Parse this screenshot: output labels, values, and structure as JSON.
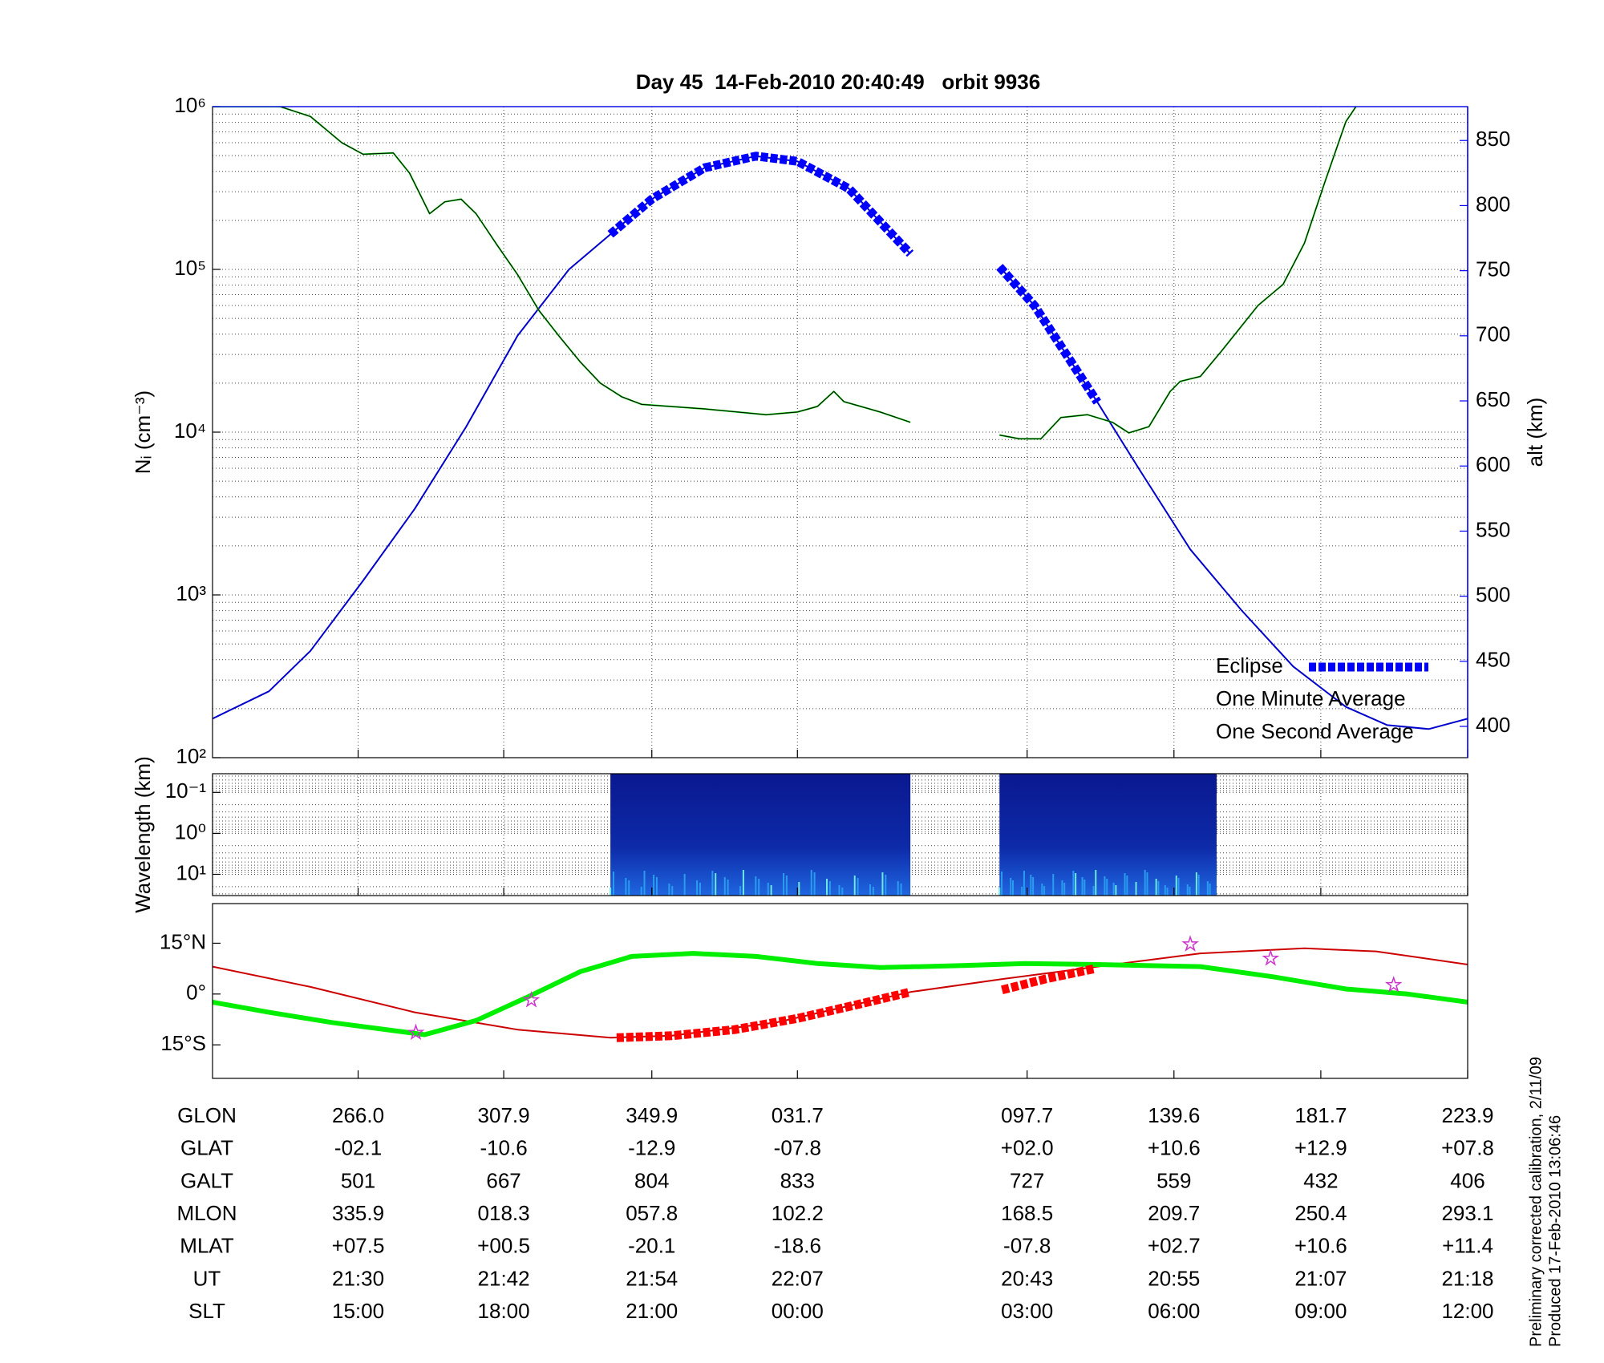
{
  "chart_data": [
    {
      "type": "line",
      "title": "Day 45  14-Feb-2010 20:40:49   orbit 9936",
      "ylabel": "Nᵢ (cm⁻³)",
      "y2label": "alt (km)",
      "y2color": "#0000ff",
      "ylog": true,
      "grid": true,
      "legend": "lower right",
      "xlim": [
        0,
        100
      ],
      "xticks": [
        11.6,
        23.2,
        35.0,
        46.6,
        64.9,
        76.6,
        88.3,
        100
      ],
      "ylim": [
        100,
        1000000
      ],
      "yticks": [
        {
          "value": 100,
          "label": "10²"
        },
        {
          "value": 1000,
          "label": "10³"
        },
        {
          "value": 10000,
          "label": "10⁴"
        },
        {
          "value": 100000,
          "label": "10⁵"
        },
        {
          "value": 1000000,
          "label": "10⁶"
        }
      ],
      "y2lim": [
        376,
        876
      ],
      "y2ticks": [
        400,
        450,
        500,
        550,
        600,
        650,
        700,
        750,
        800,
        850
      ],
      "series": [
        {
          "name": "Eclipse",
          "color": "#0000ff",
          "axis": "y2",
          "linestyle": "dashed",
          "weight": "heavy",
          "x": [
            31.7,
            35.0,
            39.2,
            43.3,
            46.6,
            50.7,
            55.6,
            59,
            62.7,
            65.5,
            70.5
          ],
          "values": [
            778,
            805,
            829,
            838,
            834,
            813,
            763,
            null,
            753,
            723,
            649
          ]
        },
        {
          "name": "One Minute Average",
          "color": "#000000",
          "linestyle": "solid",
          "weight": "light",
          "x": [
            0,
            5.4,
            7.8,
            10.3,
            12.0,
            14.4,
            15.7,
            17.3,
            18.5,
            19.8,
            21.0,
            22.7,
            24.3,
            26.0,
            27.6,
            29.3,
            30.9,
            32.6,
            34.2,
            39.2,
            44.1,
            46.6,
            48.2,
            49.5,
            50.3,
            53.2,
            55.6,
            59,
            62.7,
            64.3,
            66.0,
            67.6,
            69.7,
            71.7,
            73.0,
            74.6,
            76.3,
            77.1,
            78.7,
            80.4,
            83.3,
            85.3,
            87.0,
            88.6,
            90.3,
            91.1
          ],
          "values": [
            1000000,
            1000000,
            870000,
            600000,
            510000,
            520000,
            390000,
            220000,
            260000,
            270000,
            220000,
            140000,
            93000,
            56000,
            39000,
            27000,
            20000,
            16500,
            14800,
            13900,
            12800,
            13300,
            14400,
            17800,
            15400,
            13300,
            11500,
            null,
            9600,
            9100,
            9100,
            12300,
            12800,
            11500,
            9900,
            10800,
            17800,
            20500,
            22000,
            31600,
            60000,
            81000,
            145000,
            340000,
            810000,
            1000000
          ]
        },
        {
          "name": "One Second Average",
          "color": "#00dd00",
          "linestyle": "solid",
          "weight": "light",
          "x": [
            0,
            5.4,
            7.8,
            10.3,
            12.0,
            14.4,
            15.7,
            17.3,
            18.5,
            19.8,
            21.0,
            22.7,
            24.3,
            26.0,
            27.6,
            29.3,
            30.9,
            32.6,
            34.2,
            39.2,
            44.1,
            46.6,
            48.2,
            49.5,
            50.3,
            53.2,
            55.6,
            59,
            62.7,
            64.3,
            66.0,
            67.6,
            69.7,
            71.7,
            73.0,
            74.6,
            76.3,
            77.1,
            78.7,
            80.4,
            83.3,
            85.3,
            87.0,
            88.6,
            90.3,
            91.1
          ],
          "values": [
            1000000,
            1000000,
            870000,
            600000,
            510000,
            520000,
            390000,
            220000,
            260000,
            270000,
            220000,
            140000,
            93000,
            56000,
            39000,
            27000,
            20000,
            16500,
            14800,
            13900,
            12800,
            13300,
            14400,
            17800,
            15400,
            13300,
            11500,
            null,
            9600,
            9100,
            9100,
            12300,
            12800,
            11500,
            9900,
            10800,
            17800,
            20500,
            22000,
            31600,
            60000,
            81000,
            145000,
            340000,
            810000,
            1000000
          ]
        },
        {
          "color": "#0000cc",
          "axis": "y2",
          "linestyle": "solid",
          "weight": "light",
          "x": [
            0,
            4.5,
            7.8,
            12.0,
            16.1,
            20.2,
            24.3,
            28.4,
            31.7,
            35.0,
            39.2,
            43.3,
            46.6,
            50.7,
            55.6,
            59,
            62.7,
            65.5,
            70.5,
            73.8,
            77.9,
            82.0,
            86.1,
            90.3,
            93.6,
            96.9,
            100
          ],
          "values": [
            406,
            427,
            458,
            512,
            567,
            630,
            700,
            751,
            778,
            805,
            829,
            838,
            834,
            813,
            763,
            null,
            753,
            723,
            649,
            598,
            536,
            489,
            446,
            415,
            401,
            398,
            406
          ]
        }
      ]
    },
    {
      "type": "heatmap",
      "ylabel": "Wavelength (km)",
      "ylog": true,
      "grid": true,
      "xlim": [
        0,
        100
      ],
      "xticks": [
        11.6,
        23.2,
        35.0,
        46.6,
        64.9,
        76.6,
        88.3,
        100
      ],
      "ylim": [
        33,
        0.035
      ],
      "yticks": [
        {
          "value": 0.1,
          "label": "10⁻¹"
        },
        {
          "value": 1,
          "label": "10⁰"
        },
        {
          "value": 10,
          "label": "10¹"
        }
      ],
      "spectra": [
        {
          "x": [
            31.7,
            55.6
          ]
        },
        {
          "x": [
            62.7,
            80.0
          ]
        }
      ]
    },
    {
      "type": "line",
      "grid": false,
      "xlim": [
        0,
        100
      ],
      "xticks": [
        11.6,
        23.2,
        35.0,
        46.6,
        64.9,
        76.6,
        88.3,
        100
      ],
      "ylim": [
        -24.9,
        26.7
      ],
      "yticks": [
        {
          "value": 15,
          "label": "15°N"
        },
        {
          "value": 0,
          "label": "0°"
        },
        {
          "value": -15,
          "label": "15°S"
        }
      ],
      "series": [
        {
          "marker": "star",
          "color": "#cc33cc",
          "x": [
            16.2,
            25.4,
            77.9,
            84.3,
            94.1
          ],
          "values": [
            -11.4,
            -1.8,
            14.7,
            10.5,
            2.7
          ]
        },
        {
          "color": "#ff0000",
          "linestyle": "dashed",
          "weight": "heavy",
          "x": [
            32.2,
            36.6,
            41.6,
            46.6,
            51.5,
            55.6,
            59,
            62.9,
            66.4,
            70.3
          ],
          "values": [
            -12.9,
            -12.3,
            -10.5,
            -7.2,
            -3.0,
            0.6,
            null,
            1.2,
            4.5,
            7.5
          ]
        },
        {
          "color": "#00ee00",
          "linestyle": "solid",
          "weight": "heavy",
          "x": [
            0,
            4.5,
            9.5,
            14.4,
            16.9,
            21.0,
            25.1,
            29.3,
            33.4,
            38.3,
            43.3,
            48.2,
            53.2,
            59.8,
            64.7,
            70.5,
            78.7,
            84.5,
            90.3,
            95.2,
            100
          ],
          "values": [
            -2.4,
            -5.4,
            -8.4,
            -10.8,
            -12.0,
            -7.8,
            -0.9,
            6.6,
            11.1,
            12.0,
            11.1,
            9.0,
            7.8,
            8.4,
            9.0,
            8.7,
            8.1,
            5.1,
            1.5,
            0,
            -2.4
          ]
        },
        {
          "color": "#cc0000",
          "linestyle": "solid",
          "weight": "light",
          "x": [
            0,
            7.8,
            16.1,
            24.3,
            31.7,
            36.6,
            44.9,
            55.6,
            63.1,
            70.5,
            78.7,
            87.0,
            92.7,
            100
          ],
          "values": [
            8.1,
            2.1,
            -5.4,
            -10.5,
            -12.9,
            -12.3,
            -8.4,
            0.6,
            4.5,
            8.1,
            12.0,
            13.5,
            12.6,
            8.7
          ]
        }
      ]
    }
  ],
  "table": {
    "rows": [
      [
        "GLON",
        "266.0",
        "307.9",
        "349.9",
        "031.7",
        "097.7",
        "139.6",
        "181.7",
        "223.9"
      ],
      [
        "GLAT",
        "-02.1",
        "-10.6",
        "-12.9",
        "-07.8",
        "+02.0",
        "+10.6",
        "+12.9",
        "+07.8"
      ],
      [
        "GALT",
        "501",
        "667",
        "804",
        "833",
        "727",
        "559",
        "432",
        "406"
      ],
      [
        "MLON",
        "335.9",
        "018.3",
        "057.8",
        "102.2",
        "168.5",
        "209.7",
        "250.4",
        "293.1"
      ],
      [
        "MLAT",
        "+07.5",
        "+00.5",
        "-20.1",
        "-18.6",
        "-07.8",
        "+02.7",
        "+10.6",
        "+11.4"
      ],
      [
        "UT",
        "21:30",
        "21:42",
        "21:54",
        "22:07",
        "20:43",
        "20:55",
        "21:07",
        "21:18"
      ],
      [
        "SLT",
        "15:00",
        "18:00",
        "21:00",
        "00:00",
        "03:00",
        "06:00",
        "09:00",
        "12:00"
      ]
    ]
  },
  "notes": [
    "Preliminary corrected calibration, 2/11/09",
    "Produced 17-Feb-2010 13:06:46"
  ]
}
